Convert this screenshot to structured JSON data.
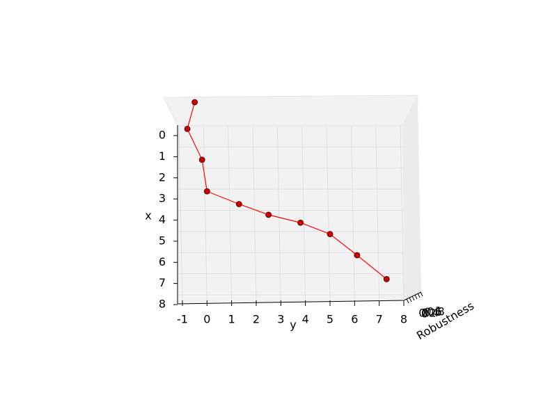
{
  "chart_data": {
    "type": "line3d",
    "x_label": "x",
    "y_label": "y",
    "z_label": "Robustness",
    "x": [
      0,
      1,
      2,
      3,
      4,
      5,
      6,
      7,
      8,
      9
    ],
    "y": [
      -0.5,
      -0.8,
      -0.2,
      0,
      1.3,
      2.5,
      3.8,
      5,
      6.1,
      7.3
    ],
    "z": [
      0.48,
      0.4,
      0.26,
      0.11,
      0.23,
      0.38,
      0.57,
      0.71,
      0.71,
      0.67
    ],
    "color": "#ff0000",
    "marker_color": "#cc0000",
    "xlim": [
      0,
      8
    ],
    "xticks": [
      0,
      1,
      2,
      3,
      4,
      5,
      6,
      7,
      8
    ],
    "ylim": [
      -1,
      8
    ],
    "yticks": [
      -1,
      0,
      1,
      2,
      3,
      4,
      5,
      6,
      7,
      8
    ],
    "zlim": [
      0,
      1
    ],
    "zticks": [
      0.0,
      0.2,
      0.4,
      0.6,
      0.8,
      1.0
    ],
    "grid": true
  }
}
